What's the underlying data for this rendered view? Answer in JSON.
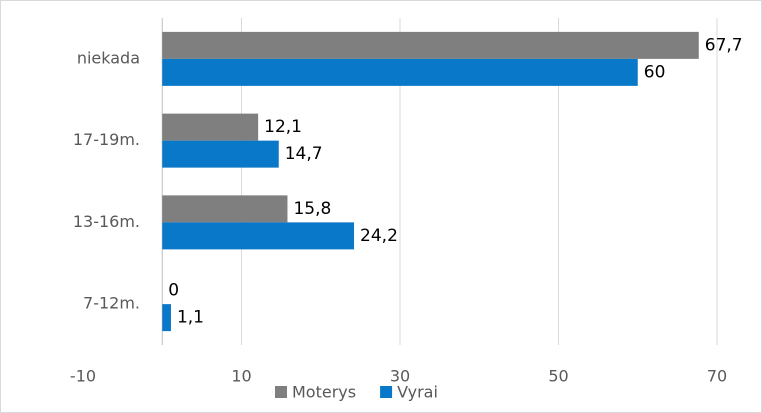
{
  "chart_data": {
    "type": "hbar",
    "categories": [
      "niekada",
      "17-19m.",
      "13-16m.",
      "7-12m."
    ],
    "series": [
      {
        "name": "Moterys",
        "color": "#7f7f7f",
        "values": [
          67.7,
          12.1,
          15.8,
          0
        ],
        "value_labels": [
          "67,7",
          "12,1",
          "15,8",
          "0"
        ]
      },
      {
        "name": "Vyrai",
        "color": "#0a78c8",
        "values": [
          60,
          14.7,
          24.2,
          1.1
        ],
        "value_labels": [
          "60",
          "14,7",
          "24,2",
          "1,1"
        ]
      }
    ],
    "xlim": [
      -10,
      70
    ],
    "xticks": [
      -10,
      10,
      30,
      50,
      70
    ],
    "grid": true,
    "legend": "bottom"
  }
}
